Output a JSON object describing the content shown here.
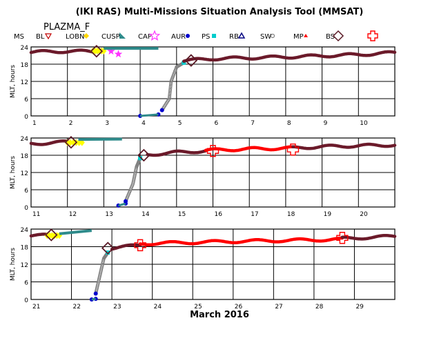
{
  "title": "(IKI RAS) Multi-Missions Situation Analysis Tool (MMSAT)",
  "mission": "PLAZMA_F",
  "xlabel": "March 2016",
  "legend": [
    {
      "key": "MS",
      "label": "MS",
      "color": "#000000",
      "symbol": "none"
    },
    {
      "key": "BL",
      "label": "BL",
      "color": "#c00000",
      "symbol": "triangle-down"
    },
    {
      "key": "LOBN",
      "label": "LOBN",
      "color": "#ffd700",
      "symbol": "diamond"
    },
    {
      "key": "CUSP",
      "label": "CUSP",
      "color": "#2e8b8b",
      "symbol": "wedge"
    },
    {
      "key": "CAP",
      "label": "CAP",
      "color": "#ff33ff",
      "symbol": "star"
    },
    {
      "key": "AUR",
      "label": "AUR",
      "color": "#0000cc",
      "symbol": "dot"
    },
    {
      "key": "PS",
      "label": "PS",
      "color": "#00cccc",
      "symbol": "square"
    },
    {
      "key": "RB",
      "label": "RB",
      "color": "#000080",
      "symbol": "triangle-up"
    },
    {
      "key": "SW",
      "label": "SW",
      "color": "#808080",
      "symbol": "ring"
    },
    {
      "key": "MP",
      "label": "MP",
      "color": "#ff0000",
      "symbol": "small-triangle"
    },
    {
      "key": "BS",
      "label": "BS",
      "color": "#5a1a26",
      "symbol": "diamond-open"
    },
    {
      "key": "SHK",
      "label": "",
      "color": "#ff0000",
      "symbol": "cross-open"
    }
  ],
  "colors": {
    "msh": "#6b1a2a",
    "sw": "#ff0000",
    "cusp": "#2e8b8b",
    "ps": "#808080",
    "aur": "#0000cc",
    "lobn": "#ffff00",
    "bs_marker": "#5a1a26",
    "shock_marker": "#ff0000"
  },
  "chart_data": [
    {
      "type": "line",
      "ylabel": "MLT, hours",
      "xlim": [
        1,
        11
      ],
      "ylim": [
        0,
        24
      ],
      "yticks": [
        0,
        6,
        12,
        18,
        24
      ],
      "xticks": [
        "1",
        "2",
        "3",
        "4",
        "5",
        "6",
        "7",
        "8",
        "9",
        "10"
      ],
      "grid": true,
      "series": [
        {
          "region": "MSH",
          "x": [
            1.0,
            2.0,
            2.7
          ],
          "y": [
            22.2,
            22.5,
            22.4
          ]
        },
        {
          "region": "LOBN",
          "x": [
            2.7,
            3.0
          ],
          "y": [
            22.6,
            22.6
          ]
        },
        {
          "region": "CAP",
          "x": [
            3.2,
            3.4
          ],
          "y": [
            22.5,
            21.5
          ]
        },
        {
          "region": "CUSP",
          "x": [
            3.0,
            4.5
          ],
          "y": [
            23.5,
            23.5
          ]
        },
        {
          "region": "AUR",
          "x": [
            4.0,
            4.5
          ],
          "y": [
            0.0,
            0.5
          ]
        },
        {
          "region": "PS",
          "x": [
            4.6,
            4.8,
            4.85,
            5.0,
            5.2
          ],
          "y": [
            2.0,
            6.0,
            12.0,
            17.0,
            18.5
          ]
        },
        {
          "region": "MSH",
          "x": [
            5.2,
            6.0,
            8.0,
            10.0,
            11.0
          ],
          "y": [
            19.2,
            19.9,
            20.5,
            21.3,
            22.0
          ]
        }
      ],
      "boundaries": [
        {
          "kind": "BS",
          "x": 2.8,
          "y": 22.5
        },
        {
          "kind": "BS",
          "x": 5.4,
          "y": 19.3
        }
      ]
    },
    {
      "type": "line",
      "ylabel": "MLT, hours",
      "xlim": [
        11,
        21
      ],
      "ylim": [
        0,
        24
      ],
      "yticks": [
        0,
        6,
        12,
        18,
        24
      ],
      "xticks": [
        "11",
        "12",
        "13",
        "14",
        "15",
        "16",
        "17",
        "18",
        "19",
        "20"
      ],
      "grid": true,
      "series": [
        {
          "region": "MSH",
          "x": [
            11.0,
            12.0
          ],
          "y": [
            22.0,
            22.6
          ]
        },
        {
          "region": "LOBN",
          "x": [
            12.0,
            12.4
          ],
          "y": [
            22.4,
            22.4
          ]
        },
        {
          "region": "CUSP",
          "x": [
            12.3,
            13.5
          ],
          "y": [
            23.5,
            23.6
          ]
        },
        {
          "region": "AUR",
          "x": [
            13.4,
            13.6
          ],
          "y": [
            0.5,
            1.2
          ]
        },
        {
          "region": "PS",
          "x": [
            13.6,
            13.8,
            13.9,
            14.0
          ],
          "y": [
            2.0,
            8.0,
            14.0,
            17.0
          ]
        },
        {
          "region": "MSH",
          "x": [
            14.2,
            15.0,
            15.8
          ],
          "y": [
            18.2,
            19.0,
            19.5
          ]
        },
        {
          "region": "SW",
          "x": [
            15.8,
            17.0,
            18.2
          ],
          "y": [
            19.7,
            20.2,
            20.5
          ]
        },
        {
          "region": "MSH",
          "x": [
            18.2,
            19.0,
            21.0
          ],
          "y": [
            20.5,
            21.0,
            21.6
          ]
        }
      ],
      "boundaries": [
        {
          "kind": "BS",
          "x": 12.1,
          "y": 22.5
        },
        {
          "kind": "BS",
          "x": 14.1,
          "y": 18.0
        },
        {
          "kind": "SHOCK",
          "x": 16.0,
          "y": 19.5
        },
        {
          "kind": "SHOCK",
          "x": 18.2,
          "y": 20.0
        }
      ]
    },
    {
      "type": "line",
      "ylabel": "MLT, hours",
      "xlim": [
        21,
        30
      ],
      "ylim": [
        0,
        24
      ],
      "yticks": [
        0,
        6,
        12,
        18,
        24
      ],
      "xticks": [
        "21",
        "22",
        "23",
        "24",
        "25",
        "26",
        "27",
        "28",
        "29"
      ],
      "grid": true,
      "series": [
        {
          "region": "MSH",
          "x": [
            21.0,
            21.4
          ],
          "y": [
            21.8,
            21.8
          ]
        },
        {
          "region": "LOBN",
          "x": [
            21.4,
            21.7
          ],
          "y": [
            21.8,
            21.8
          ]
        },
        {
          "region": "CUSP",
          "x": [
            21.7,
            22.5
          ],
          "y": [
            22.4,
            23.5
          ]
        },
        {
          "region": "AUR",
          "x": [
            22.5,
            22.6
          ],
          "y": [
            0.0,
            0.2
          ]
        },
        {
          "region": "PS",
          "x": [
            22.6,
            22.7,
            22.8,
            22.9
          ],
          "y": [
            2.0,
            8.0,
            14.0,
            16.0
          ]
        },
        {
          "region": "MSH",
          "x": [
            23.0,
            23.7
          ],
          "y": [
            17.5,
            18.5
          ]
        },
        {
          "region": "SW",
          "x": [
            23.7,
            26.0,
            28.7
          ],
          "y": [
            19.0,
            19.8,
            20.5
          ]
        },
        {
          "region": "MSH",
          "x": [
            28.7,
            30.0
          ],
          "y": [
            20.8,
            21.5
          ]
        }
      ],
      "boundaries": [
        {
          "kind": "BS",
          "x": 21.5,
          "y": 22.0
        },
        {
          "kind": "BS",
          "x": 22.9,
          "y": 17.5
        },
        {
          "kind": "SHOCK",
          "x": 23.7,
          "y": 18.5
        },
        {
          "kind": "SHOCK",
          "x": 28.7,
          "y": 21.0
        }
      ]
    }
  ]
}
